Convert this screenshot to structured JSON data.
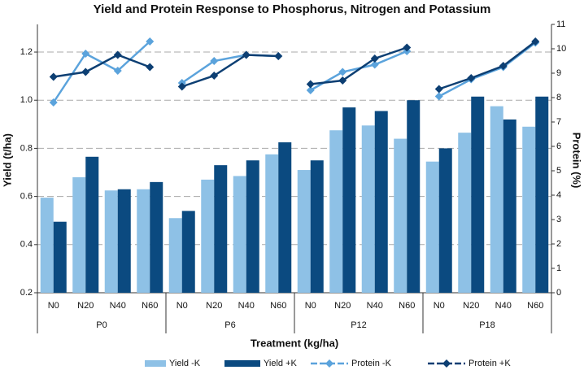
{
  "chart_data": {
    "type": "bar-line",
    "title": "Yield and Protein Response to Phosphorus, Nitrogen and Potassium",
    "xlabel": "Treatment (kg/ha)",
    "ylabel": "Yield (t/ha)",
    "y2label": "Protein (%)",
    "groups": [
      "P0",
      "P6",
      "P12",
      "P18"
    ],
    "categories": [
      "N0",
      "N20",
      "N40",
      "N60",
      "N0",
      "N20",
      "N40",
      "N60",
      "N0",
      "N20",
      "N40",
      "N60",
      "N0",
      "N20",
      "N40",
      "N60"
    ],
    "series": [
      {
        "name": "Yield -K",
        "type": "bar",
        "color": "#8ec1e6",
        "values": [
          0.595,
          0.68,
          0.625,
          0.63,
          0.51,
          0.67,
          0.685,
          0.775,
          0.71,
          0.875,
          0.895,
          0.84,
          0.745,
          0.865,
          0.975,
          0.89
        ]
      },
      {
        "name": "Yield +K",
        "type": "bar",
        "color": "#0b4a80",
        "values": [
          0.495,
          0.765,
          0.63,
          0.66,
          0.54,
          0.73,
          0.75,
          0.825,
          0.75,
          0.97,
          0.955,
          1.0,
          0.8,
          1.015,
          0.92,
          1.015
        ]
      },
      {
        "name": "Protein -K",
        "type": "line",
        "axis": "y2",
        "color": "#5ba3dc",
        "values": [
          7.8,
          9.8,
          9.1,
          10.3,
          8.6,
          9.5,
          9.75,
          9.7,
          8.3,
          9.05,
          9.35,
          9.9,
          8.05,
          8.75,
          9.25,
          10.25
        ]
      },
      {
        "name": "Protein +K",
        "type": "line",
        "axis": "y2",
        "color": "#0d3f73",
        "values": [
          8.85,
          9.05,
          9.75,
          9.25,
          8.45,
          8.9,
          9.75,
          9.7,
          8.55,
          8.7,
          9.6,
          10.05,
          8.35,
          8.8,
          9.3,
          10.3
        ]
      }
    ],
    "ylim": [
      0.2,
      1.315
    ],
    "yticks": [
      0.2,
      0.4,
      0.6,
      0.8,
      {
        "value": 1,
        "label": "1.0"
      },
      1.2
    ],
    "y2lim": [
      0,
      11
    ],
    "y2ticks": [
      0,
      1,
      2,
      3,
      4,
      5,
      6,
      7,
      8,
      9,
      10,
      11
    ],
    "grid": true
  }
}
